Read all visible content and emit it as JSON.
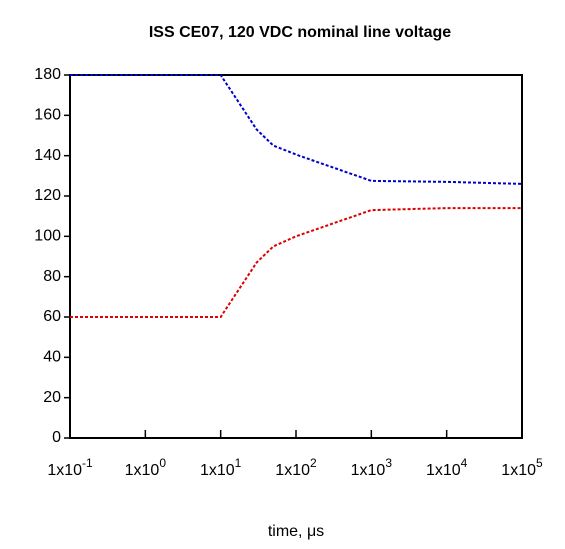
{
  "chart_data": {
    "type": "line",
    "title": "ISS CE07, 120 VDC nominal line voltage",
    "xlabel": "time, μs",
    "xscale": "log",
    "xlim": [
      0.1,
      100000
    ],
    "xticks": [
      {
        "value": 0.1,
        "label": "1x10",
        "sup": "-1"
      },
      {
        "value": 1,
        "label": "1x10",
        "sup": "0"
      },
      {
        "value": 10,
        "label": "1x10",
        "sup": "1"
      },
      {
        "value": 100,
        "label": "1x10",
        "sup": "2"
      },
      {
        "value": 1000,
        "label": "1x10",
        "sup": "3"
      },
      {
        "value": 10000,
        "label": "1x10",
        "sup": "4"
      },
      {
        "value": 100000,
        "label": "1x10",
        "sup": "5"
      }
    ],
    "ylim": [
      0,
      180
    ],
    "yticks": [
      0,
      20,
      40,
      60,
      80,
      100,
      120,
      140,
      160,
      180
    ],
    "series": [
      {
        "color": "#0000cc",
        "x": [
          0.1,
          10,
          30,
          50,
          110,
          1000,
          10000,
          100000
        ],
        "values": [
          180,
          180,
          153,
          145,
          140,
          127.5,
          127,
          126
        ]
      },
      {
        "color": "#dd0000",
        "x": [
          0.1,
          10,
          30,
          50,
          100,
          1000,
          10000,
          100000
        ],
        "values": [
          60,
          60,
          87,
          95,
          100,
          113,
          114,
          114
        ]
      }
    ]
  }
}
